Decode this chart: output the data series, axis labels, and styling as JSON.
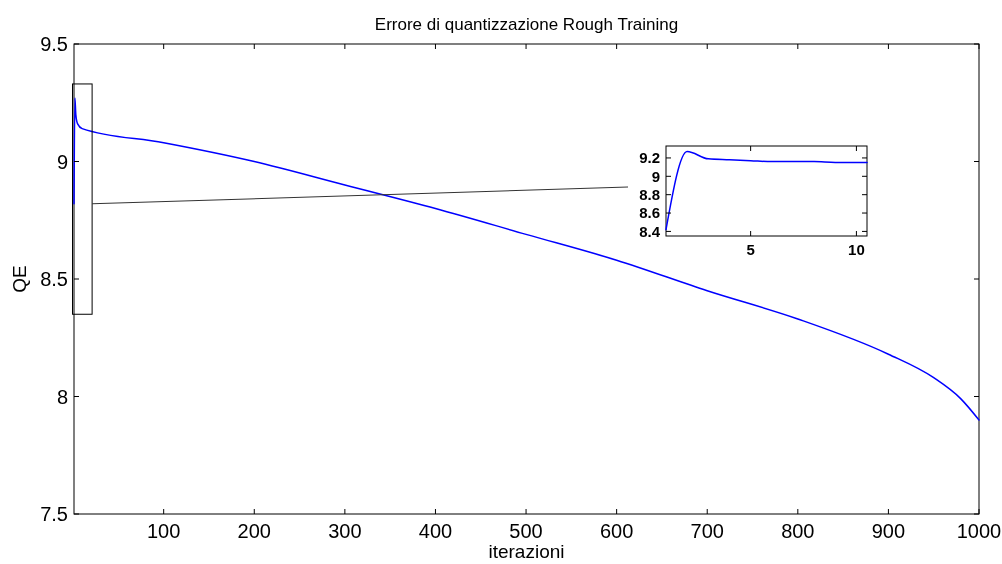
{
  "chart_data": [
    {
      "type": "line",
      "title": "Errore di quantizzazione Rough Training",
      "xlabel": "iterazioni",
      "ylabel": "QE",
      "xlim": [
        1,
        1000
      ],
      "ylim": [
        7.5,
        9.5
      ],
      "xticks": [
        100,
        200,
        300,
        400,
        500,
        600,
        700,
        800,
        900,
        1000
      ],
      "yticks": [
        7.5,
        8,
        8.5,
        9,
        9.5
      ],
      "series": [
        {
          "color": "#0000ff",
          "x": [
            1,
            2,
            3,
            5,
            10,
            100,
            200,
            300,
            400,
            500,
            600,
            700,
            800,
            900,
            950,
            980,
            1000
          ],
          "values": [
            8.82,
            9.27,
            9.2,
            9.16,
            9.14,
            9.08,
            9.0,
            8.9,
            8.8,
            8.69,
            8.58,
            8.45,
            8.33,
            8.18,
            8.08,
            7.99,
            7.9
          ]
        }
      ]
    },
    {
      "type": "line",
      "xlim": [
        1,
        10.5
      ],
      "ylim": [
        8.35,
        9.33
      ],
      "xticks": [
        5,
        10
      ],
      "yticks": [
        8.4,
        8.6,
        8.8,
        9,
        9.2
      ],
      "series": [
        {
          "color": "#0000ff",
          "x": [
            1,
            2,
            3,
            4,
            5,
            6,
            7,
            8,
            9,
            10,
            10.5
          ],
          "values": [
            8.42,
            9.27,
            9.19,
            9.18,
            9.17,
            9.16,
            9.16,
            9.16,
            9.15,
            9.15,
            9.15
          ]
        }
      ]
    }
  ]
}
